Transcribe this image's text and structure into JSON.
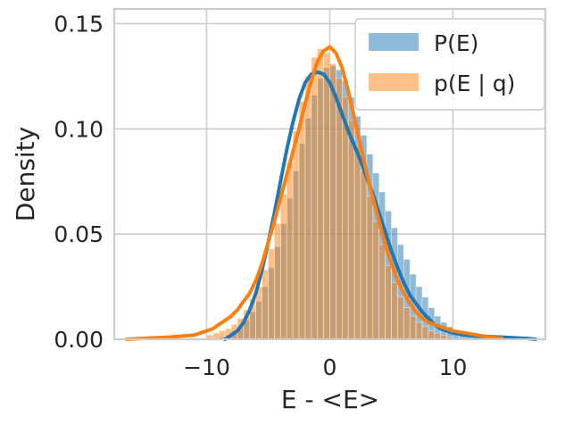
{
  "chart_data": {
    "type": "histogram",
    "xlabel": "E - <E>",
    "ylabel": "Density",
    "xlim": [
      -17.5,
      17.5
    ],
    "ylim": [
      0,
      0.157
    ],
    "x_ticks": [
      -10,
      0,
      10
    ],
    "x_tick_labels": [
      "−10",
      "0",
      "10"
    ],
    "y_ticks": [
      0,
      0.05,
      0.1,
      0.15
    ],
    "y_tick_labels": [
      "0.00",
      "0.05",
      "0.10",
      "0.15"
    ],
    "grid": true,
    "legend_position": "top-right",
    "bin_width": 0.5,
    "series": [
      {
        "name": "P(E)",
        "color": "#1f77b4",
        "bin_start": -9.0,
        "hist": [
          0.001,
          0.002,
          0.004,
          0.006,
          0.009,
          0.013,
          0.018,
          0.025,
          0.034,
          0.044,
          0.055,
          0.067,
          0.08,
          0.093,
          0.105,
          0.116,
          0.124,
          0.129,
          0.13,
          0.128,
          0.123,
          0.115,
          0.106,
          0.097,
          0.088,
          0.079,
          0.07,
          0.061,
          0.053,
          0.045,
          0.038,
          0.031,
          0.025,
          0.02,
          0.015,
          0.011,
          0.008,
          0.006,
          0.004,
          0.003,
          0.002,
          0.0015,
          0.001,
          0.0008,
          0.0006,
          0.0004
        ],
        "kde_x": [
          -8.5,
          -8,
          -7.5,
          -7,
          -6.5,
          -6,
          -5.5,
          -5,
          -4.5,
          -4,
          -3.5,
          -3,
          -2.5,
          -2,
          -1.5,
          -1,
          -0.5,
          0,
          0.5,
          1,
          1.5,
          2,
          2.5,
          3,
          3.5,
          4,
          4.5,
          5,
          5.5,
          6,
          6.5,
          7,
          7.5,
          8,
          8.5,
          9,
          10,
          11,
          12,
          13,
          14,
          15,
          16,
          16.7
        ],
        "kde_y": [
          0.0,
          0.002,
          0.004,
          0.008,
          0.014,
          0.022,
          0.033,
          0.046,
          0.06,
          0.075,
          0.09,
          0.103,
          0.114,
          0.122,
          0.126,
          0.127,
          0.126,
          0.122,
          0.115,
          0.107,
          0.099,
          0.092,
          0.085,
          0.077,
          0.069,
          0.06,
          0.051,
          0.042,
          0.034,
          0.027,
          0.021,
          0.017,
          0.013,
          0.01,
          0.007,
          0.005,
          0.003,
          0.002,
          0.0015,
          0.0012,
          0.001,
          0.0007,
          0.0004,
          0.0
        ]
      },
      {
        "name": "p(E | q)",
        "color": "#ff7f0e",
        "bin_start": -10.0,
        "hist": [
          0.002,
          0.003,
          0.004,
          0.005,
          0.007,
          0.01,
          0.014,
          0.019,
          0.025,
          0.033,
          0.043,
          0.055,
          0.069,
          0.084,
          0.099,
          0.113,
          0.125,
          0.134,
          0.138,
          0.136,
          0.131,
          0.124,
          0.115,
          0.104,
          0.092,
          0.08,
          0.068,
          0.056,
          0.045,
          0.035,
          0.027,
          0.02,
          0.015,
          0.011,
          0.008,
          0.006,
          0.004,
          0.003,
          0.002,
          0.001
        ],
        "kde_x": [
          -16.5,
          -15,
          -13,
          -11,
          -10,
          -9.5,
          -9,
          -8.5,
          -8,
          -7.5,
          -7,
          -6.5,
          -6,
          -5.5,
          -5,
          -4.5,
          -4,
          -3.5,
          -3,
          -2.5,
          -2,
          -1.5,
          -1,
          -0.5,
          0,
          0.5,
          1,
          1.5,
          2,
          2.5,
          3,
          3.5,
          4,
          4.5,
          5,
          5.5,
          6,
          6.5,
          7,
          7.5,
          8,
          9,
          10,
          11,
          12,
          13,
          14
        ],
        "kde_y": [
          0.0,
          0.0005,
          0.001,
          0.002,
          0.004,
          0.005,
          0.007,
          0.009,
          0.011,
          0.014,
          0.018,
          0.022,
          0.028,
          0.036,
          0.046,
          0.056,
          0.067,
          0.078,
          0.089,
          0.1,
          0.112,
          0.123,
          0.132,
          0.137,
          0.139,
          0.136,
          0.129,
          0.118,
          0.105,
          0.092,
          0.079,
          0.067,
          0.056,
          0.045,
          0.036,
          0.028,
          0.022,
          0.017,
          0.013,
          0.01,
          0.008,
          0.006,
          0.004,
          0.003,
          0.002,
          0.001,
          0.0005
        ]
      }
    ]
  }
}
